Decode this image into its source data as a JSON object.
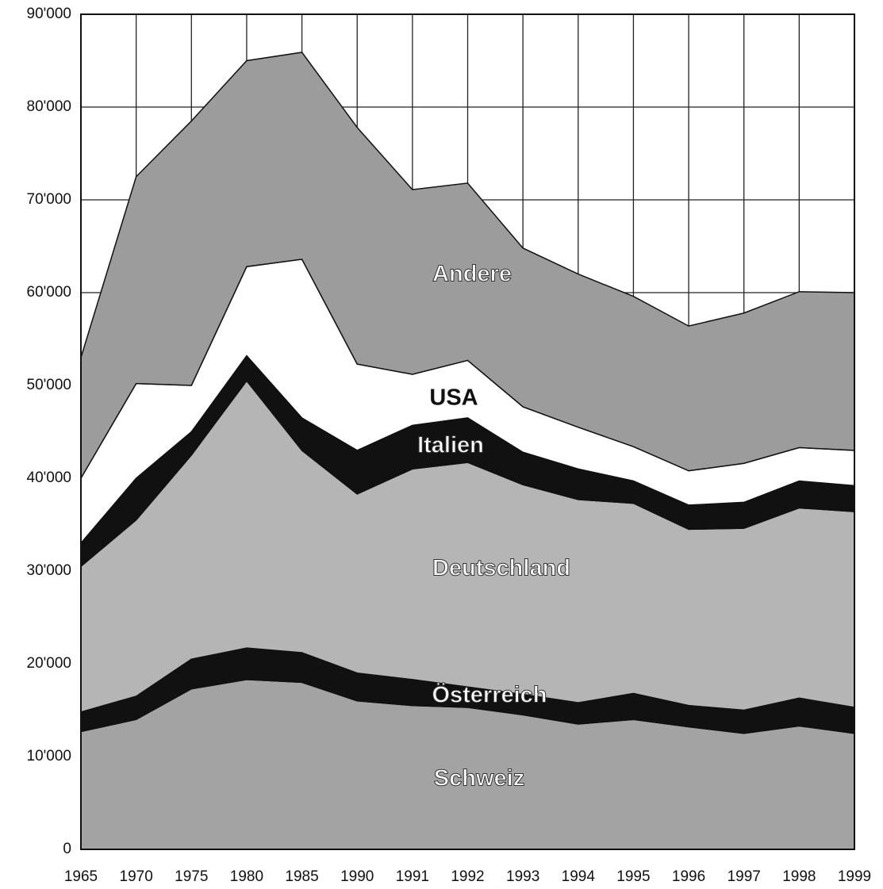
{
  "chart_data": {
    "type": "stacked_area",
    "categories": [
      "1965",
      "1970",
      "1975",
      "1980",
      "1985",
      "1990",
      "1991",
      "1992",
      "1993",
      "1994",
      "1995",
      "1996",
      "1997",
      "1998",
      "1999"
    ],
    "series": [
      {
        "name": "Schweiz",
        "color": "#a3a3a3",
        "values": [
          12700,
          14000,
          17300,
          18300,
          18000,
          16000,
          15500,
          15300,
          14500,
          13500,
          14000,
          13200,
          12500,
          13300,
          12500
        ]
      },
      {
        "name": "Österreich",
        "color": "#111111",
        "values": [
          2100,
          2500,
          3200,
          3400,
          3200,
          3000,
          2800,
          2200,
          2200,
          2300,
          2800,
          2300,
          2500,
          3000,
          2800
        ]
      },
      {
        "name": "Deutschland",
        "color": "#b5b5b5",
        "values": [
          15700,
          19000,
          22000,
          28800,
          21800,
          19300,
          22700,
          24200,
          22600,
          21900,
          20500,
          19000,
          19600,
          20500,
          21100
        ]
      },
      {
        "name": "Italien",
        "color": "#111111",
        "values": [
          2500,
          4500,
          2500,
          2700,
          3500,
          4700,
          4700,
          4800,
          3500,
          3300,
          2400,
          2600,
          2800,
          2900,
          2800
        ]
      },
      {
        "name": "USA",
        "color": "#ffffff",
        "values": [
          7000,
          10200,
          5000,
          9600,
          17100,
          9300,
          5500,
          6200,
          4900,
          4500,
          3700,
          3700,
          4200,
          3600,
          3800
        ]
      },
      {
        "name": "Andere",
        "color": "#9c9c9c",
        "values": [
          13000,
          22300,
          28500,
          22200,
          22300,
          25500,
          19900,
          19100,
          17100,
          16500,
          16200,
          15600,
          16200,
          16800,
          17000
        ]
      }
    ],
    "ylim": [
      0,
      90000
    ],
    "yticks": [
      0,
      {
        "value": 10000,
        "label": "10'000"
      },
      {
        "value": 20000,
        "label": "20'000"
      },
      {
        "value": 30000,
        "label": "30'000"
      },
      {
        "value": 40000,
        "label": "40'000"
      },
      {
        "value": 50000,
        "label": "50'000"
      },
      {
        "value": 60000,
        "label": "60'000"
      },
      {
        "value": 70000,
        "label": "70'000"
      },
      {
        "value": 80000,
        "label": "80'000"
      },
      {
        "value": 90000,
        "label": "90'000"
      }
    ],
    "grid": true
  }
}
